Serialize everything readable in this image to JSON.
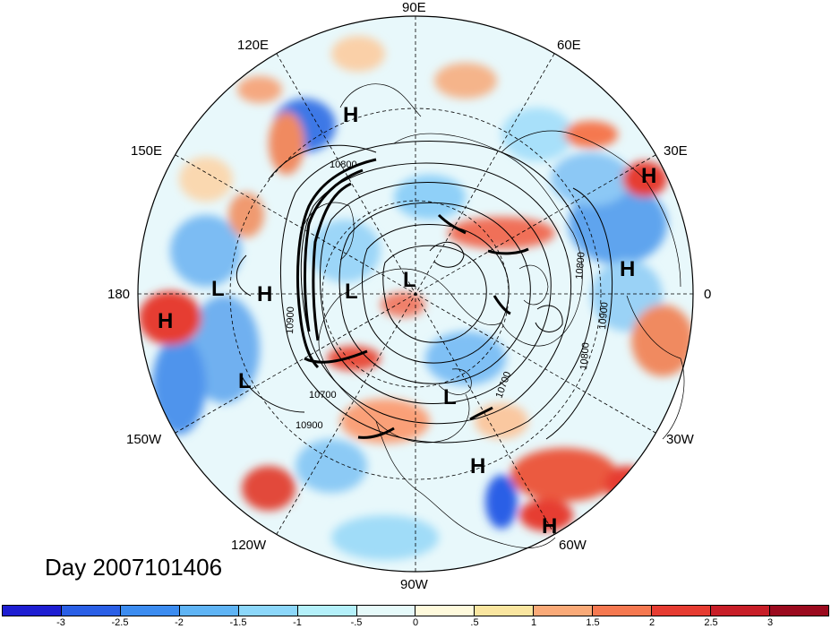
{
  "day_label": "Day 2007101406",
  "longitude_labels": {
    "lon_90e": "90E",
    "lon_60e": "60E",
    "lon_120e": "120E",
    "lon_150e": "150E",
    "lon_30e": "30E",
    "lon_180": "180",
    "lon_0": "0",
    "lon_150w": "150W",
    "lon_30w": "30W",
    "lon_120w": "120W",
    "lon_60w": "60W",
    "lon_90w": "90W"
  },
  "pressure_centers": [
    {
      "label": "H",
      "name": "high-center-north-siberia"
    },
    {
      "label": "H",
      "name": "high-center-east-europe"
    },
    {
      "label": "H",
      "name": "high-center-north-africa"
    },
    {
      "label": "L",
      "name": "low-center-bering"
    },
    {
      "label": "H",
      "name": "high-center-west-pacific"
    },
    {
      "label": "L",
      "name": "low-center-alaska"
    },
    {
      "label": "L",
      "name": "low-center-arctic"
    },
    {
      "label": "H",
      "name": "high-center-north-pacific"
    },
    {
      "label": "L",
      "name": "low-center-gulf-alaska"
    },
    {
      "label": "L",
      "name": "low-center-labrador"
    },
    {
      "label": "H",
      "name": "high-center-atlantic"
    },
    {
      "label": "H",
      "name": "high-center-south-america"
    }
  ],
  "contour_labels": {
    "c1": "10800",
    "c2": "10700",
    "c3": "10900",
    "c4": "10800",
    "c5": "10900",
    "c6": "10800",
    "c7": "10700",
    "c8": "10900"
  },
  "colorbar": {
    "colors": [
      "#1e1ed2",
      "#2a5fe6",
      "#3c8cf0",
      "#5fb4f5",
      "#8cd7fa",
      "#b4f0fa",
      "#e6fafa",
      "#fffadc",
      "#fae6a0",
      "#faaa78",
      "#f57850",
      "#e63c32",
      "#c81e28",
      "#9b0a1e"
    ],
    "labels": [
      "-3",
      "-2.5",
      "-2",
      "-1.5",
      "-1",
      "-.5",
      "0",
      ".5",
      "1",
      "1.5",
      "2",
      "2.5",
      "3"
    ]
  }
}
